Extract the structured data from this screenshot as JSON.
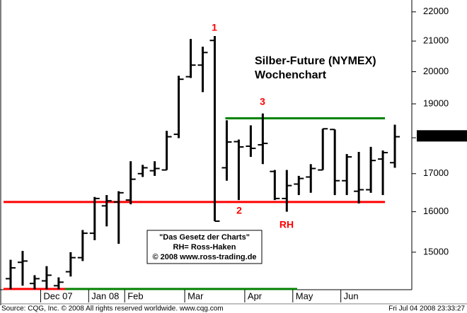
{
  "chart_data": {
    "type": "ohlc",
    "title": "Silber-Future (NYMEX)",
    "subtitle": "Wochenchart",
    "categories": [
      null,
      null,
      null,
      "Dec 07",
      null,
      null,
      null,
      "Jan 08",
      null,
      null,
      "Feb",
      null,
      null,
      null,
      null,
      "Mar",
      null,
      null,
      null,
      null,
      "Apr",
      null,
      null,
      null,
      "May",
      null,
      null,
      null,
      "Jun",
      null,
      null,
      null,
      null
    ],
    "open": [
      14380,
      14760,
      14270,
      14330,
      14220,
      14540,
      14870,
      15460,
      16150,
      16250,
      16300,
      17000,
      17080,
      17100,
      18100,
      19840,
      20210,
      21020,
      17160,
      17890,
      17760,
      17800,
      17060,
      16340,
      16720,
      16910,
      17100,
      18240,
      16810,
      16530,
      16570,
      17400,
      17300
    ],
    "high": [
      14820,
      15030,
      14460,
      14670,
      14410,
      15000,
      15540,
      16380,
      16430,
      16530,
      17340,
      17240,
      17340,
      18200,
      19870,
      21070,
      20810,
      21170,
      18510,
      17950,
      18360,
      18710,
      17100,
      17100,
      16940,
      17260,
      18260,
      18240,
      17540,
      17600,
      17740,
      17640,
      18380
    ],
    "low": [
      14140,
      14220,
      14140,
      14140,
      14140,
      14430,
      14790,
      15290,
      15630,
      15200,
      16190,
      16910,
      16940,
      17100,
      17990,
      19800,
      19360,
      15760,
      16810,
      16300,
      17460,
      17260,
      16300,
      16000,
      16430,
      16490,
      17100,
      16430,
      16430,
      16210,
      16490,
      16430,
      17160
    ],
    "close": [
      14630,
      14790,
      14380,
      14460,
      14300,
      14870,
      15460,
      16340,
      16280,
      16490,
      16850,
      17160,
      17140,
      18030,
      19760,
      20210,
      20620,
      15760,
      17880,
      17740,
      17700,
      17840,
      16340,
      16680,
      16870,
      17140,
      18260,
      16810,
      17460,
      16570,
      17360,
      17580,
      18030
    ],
    "color": "#000000",
    "log_scale": true,
    "ylim": [
      14130,
      22420
    ],
    "yticks": [
      15000,
      16000,
      17000,
      18000,
      19000,
      20000,
      21000,
      22000
    ],
    "last_price": 18055,
    "levels": [
      {
        "value": 16250,
        "color": "#ff0000"
      },
      {
        "value": 18570,
        "color": "#008000"
      }
    ],
    "annotations": [
      "1",
      "2",
      "3",
      "RH"
    ],
    "note": [
      "\"Das Gesetz der Charts\"",
      "RH= Ross-Haken",
      "© 2008 www.ross-trading.de"
    ]
  },
  "footer": {
    "source": "Source: CQG, Inc. © 2008 All rights reserved worldwide. www.cqg.com",
    "timestamp": "Fri Jul 04 2008 23:33:27"
  }
}
